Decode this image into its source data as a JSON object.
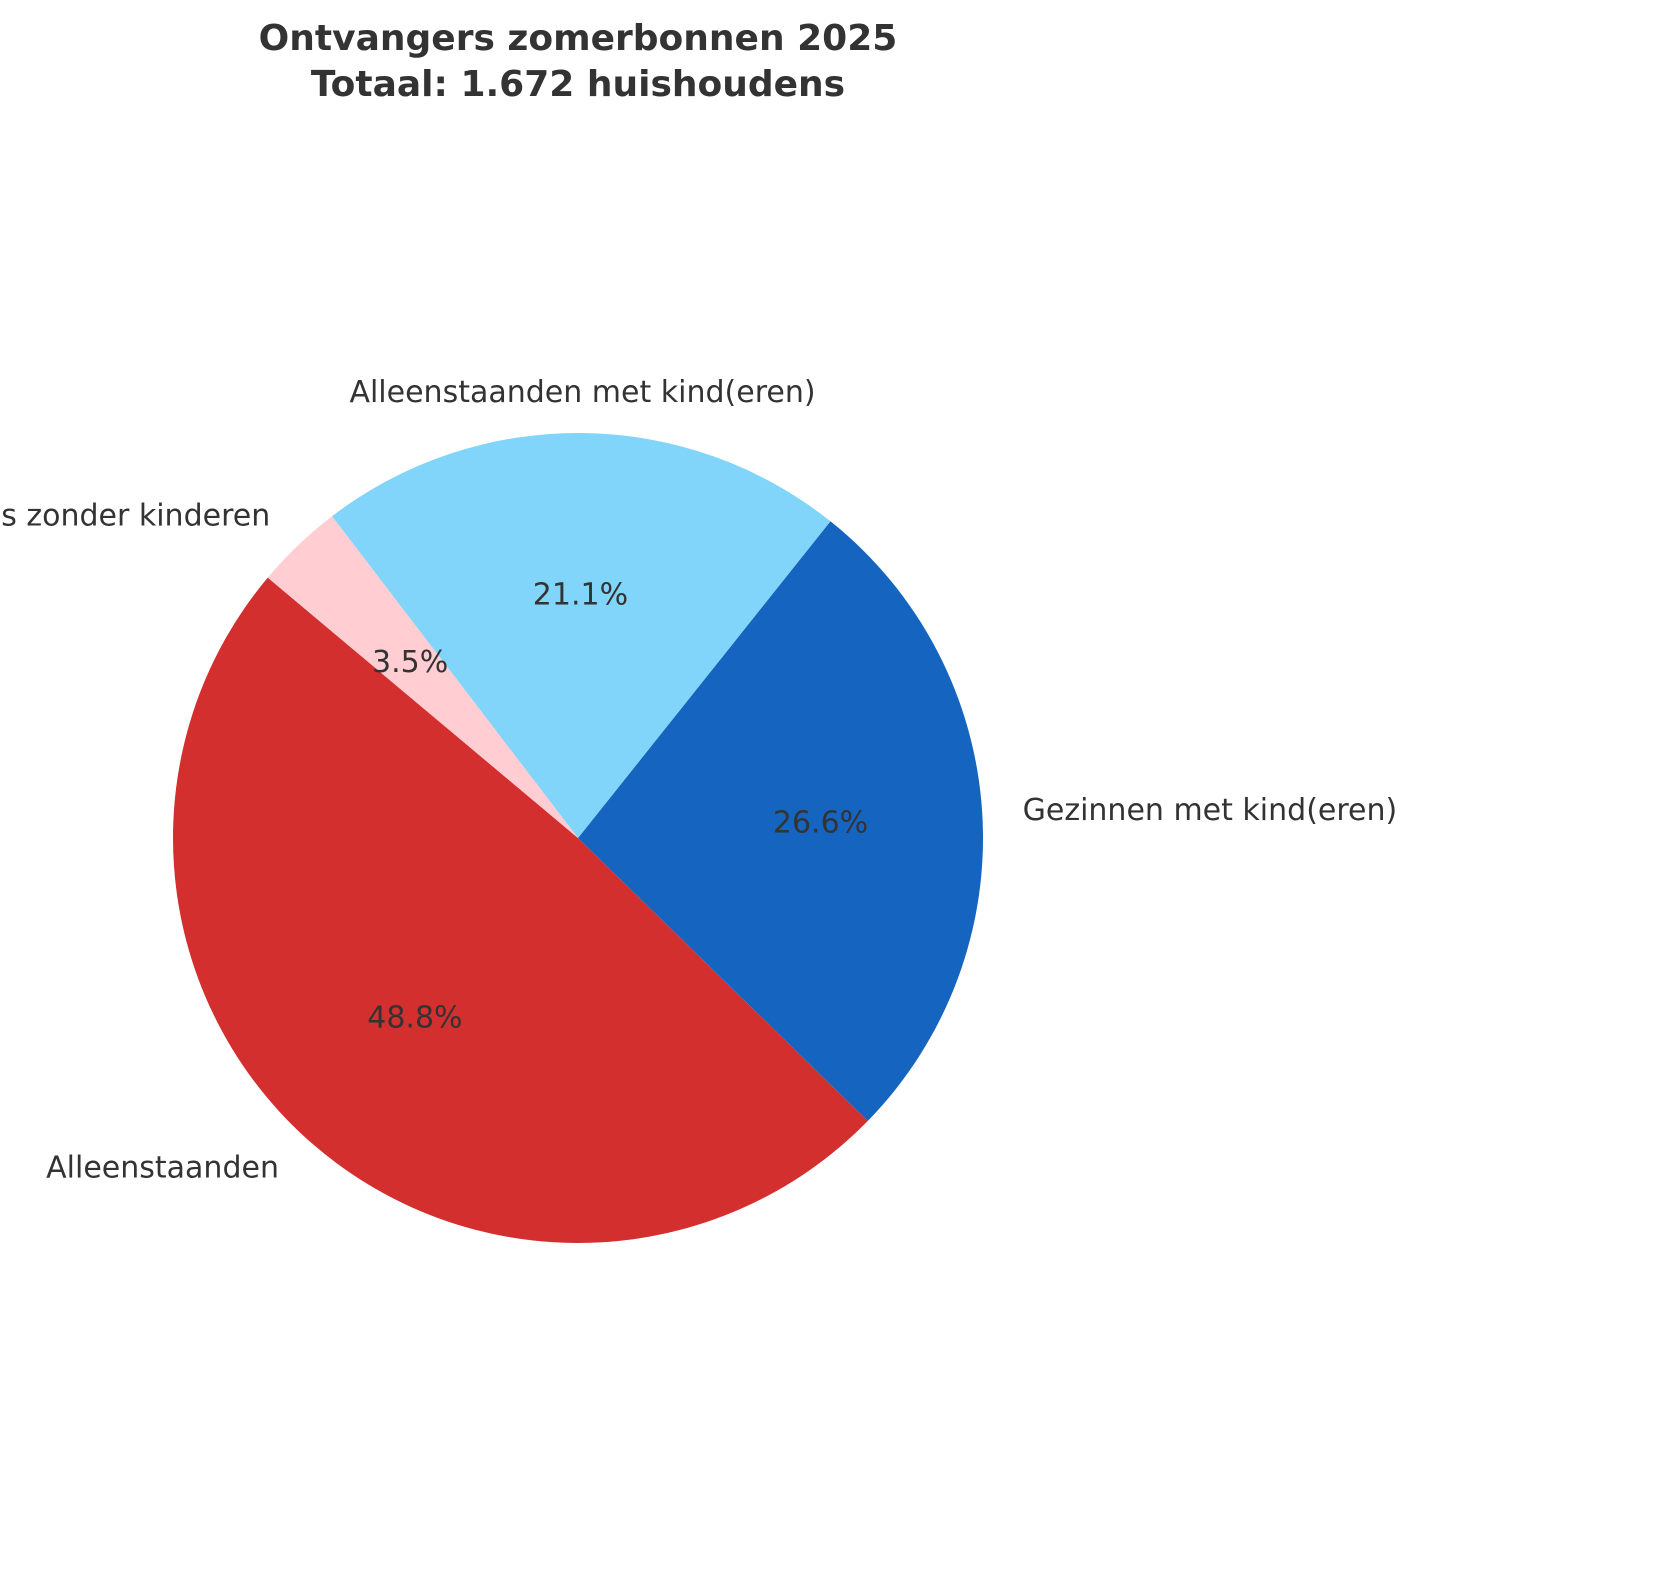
{
  "chart_data": {
    "type": "pie",
    "title": "Ontvangers zomerbonnen 2025",
    "subtitle": "Totaal: 1.672 huishoudens",
    "slices": [
      {
        "label": "Alleenstaanden",
        "value": 48.8,
        "pct_label": "48.8%",
        "color": "#d32f2f"
      },
      {
        "label": "Gezinnen met kind(eren)",
        "value": 26.6,
        "pct_label": "26.6%",
        "color": "#1565c0"
      },
      {
        "label": "Alleenstaanden met kind(eren)",
        "value": 21.1,
        "pct_label": "21.1%",
        "color": "#81d4fa"
      },
      {
        "label": "Meerpersoonshuishoudens zonder kinderen",
        "value": 3.5,
        "pct_label": "3.5%",
        "color": "#ffcdd2"
      }
    ]
  }
}
